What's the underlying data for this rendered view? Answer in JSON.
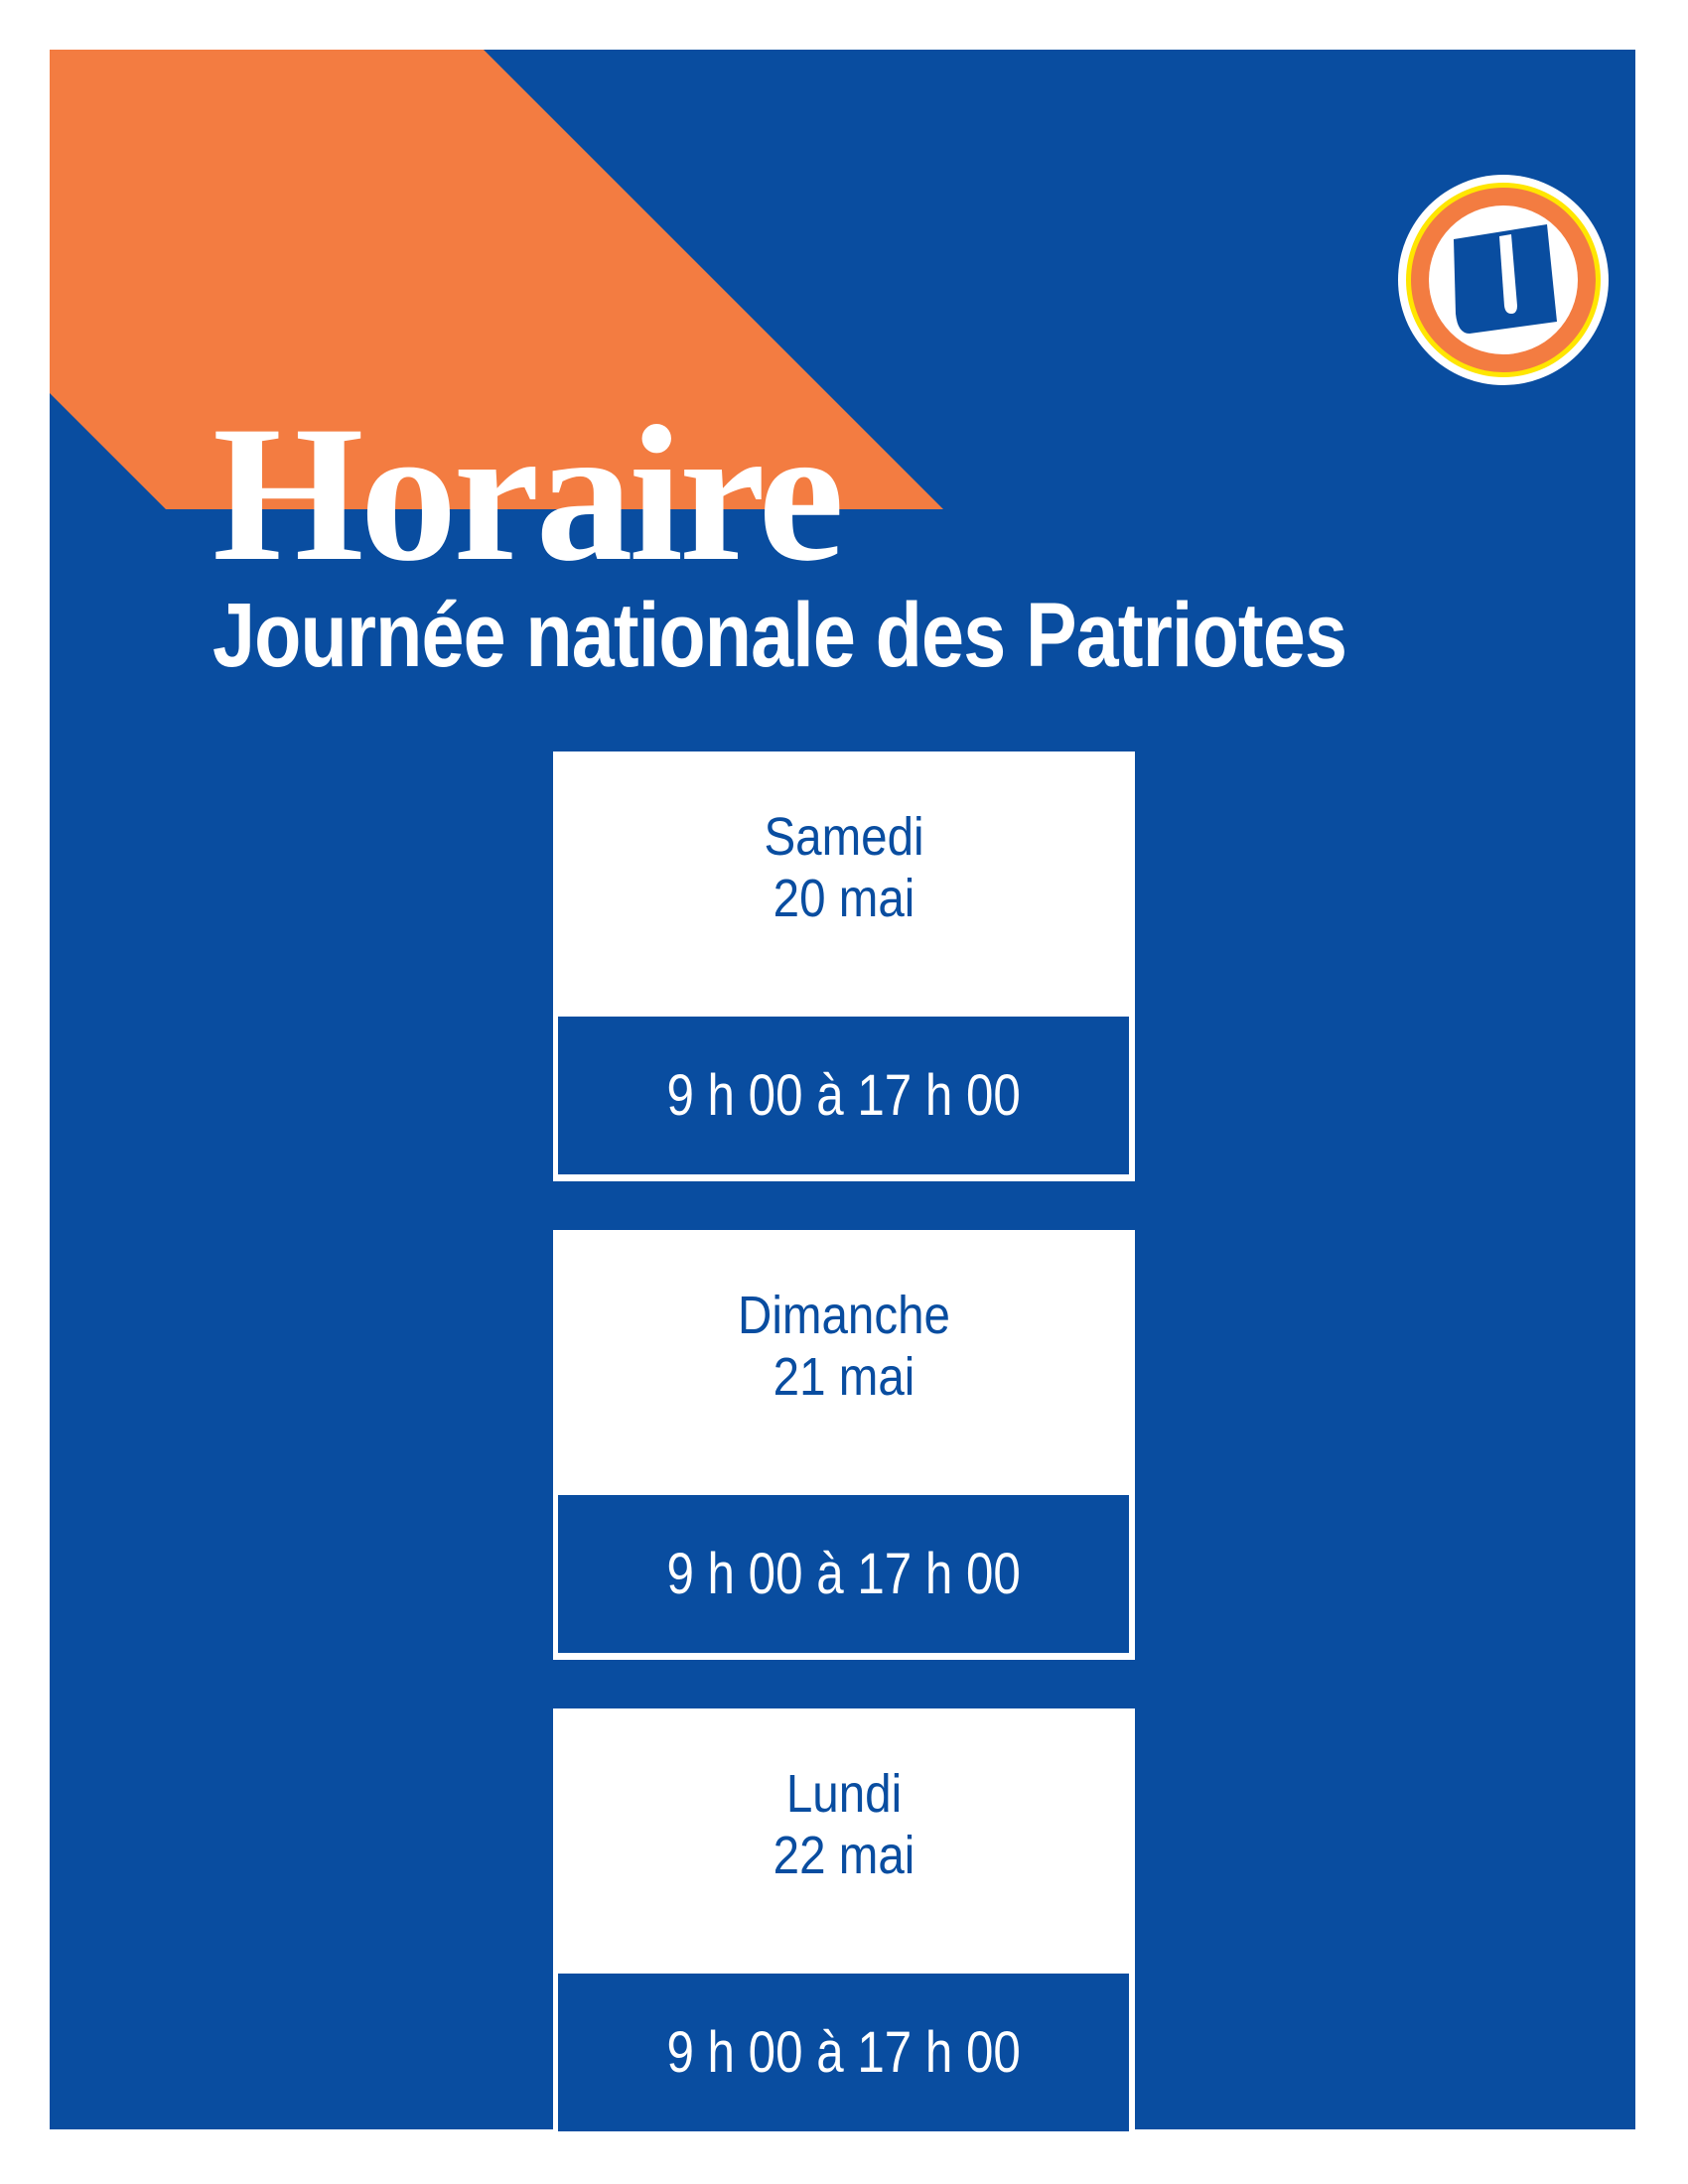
{
  "colors": {
    "background_blue": "#094da0",
    "accent_orange": "#f37c41",
    "logo_yellow": "#ffe600"
  },
  "logo": {
    "icon": "u-logo-icon"
  },
  "header": {
    "title": "Horaire",
    "subtitle": "Journée nationale des Patriotes"
  },
  "schedule": [
    {
      "day": "Samedi",
      "date": "20 mai",
      "hours": "9 h 00 à 17 h 00"
    },
    {
      "day": "Dimanche",
      "date": "21 mai",
      "hours": "9 h 00 à 17 h 00"
    },
    {
      "day": "Lundi",
      "date": "22 mai",
      "hours": "9 h 00 à 17 h 00"
    }
  ]
}
